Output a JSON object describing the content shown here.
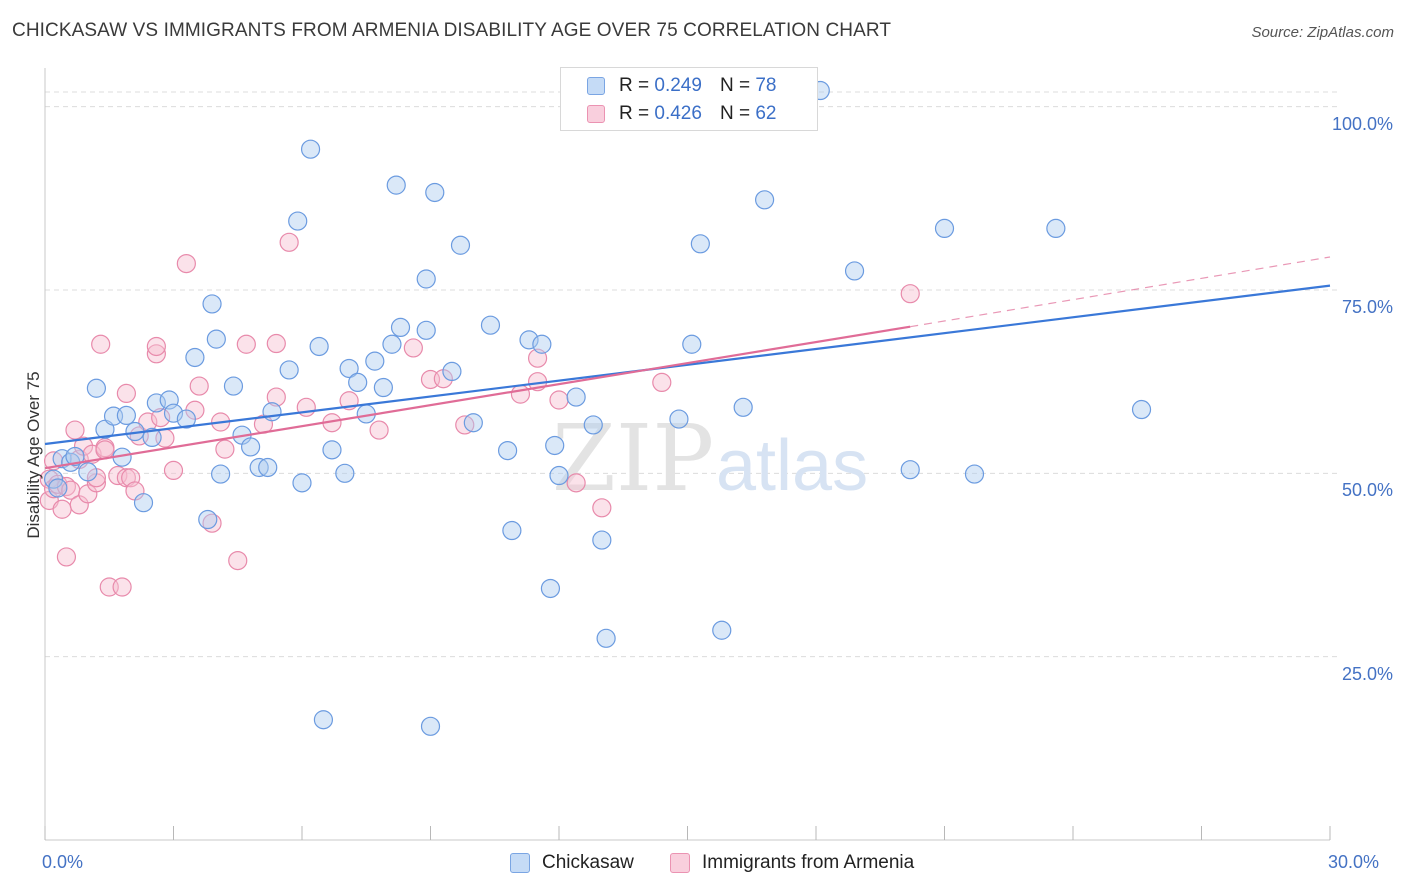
{
  "header": {
    "title": "CHICKASAW VS IMMIGRANTS FROM ARMENIA DISABILITY AGE OVER 75 CORRELATION CHART",
    "source": "Source: ZipAtlas.com"
  },
  "legend": {
    "blue": {
      "r_label": "R = ",
      "r_value": "0.249",
      "n_label": "N = ",
      "n_value": "78"
    },
    "pink": {
      "r_label": "R = ",
      "r_value": "0.426",
      "n_label": "N = ",
      "n_value": "62"
    }
  },
  "watermark": {
    "zip": "ZIP",
    "atlas": "atlas"
  },
  "colors": {
    "blue_fill": "#aecbf0",
    "blue_stroke": "#6b9be0",
    "blue_line": "#3a78d8",
    "pink_fill": "#f6bfd1",
    "pink_stroke": "#e88aab",
    "pink_line": "#e06c97",
    "tick_label": "#4472c4",
    "grid": "#dcdcdc"
  },
  "chart_data": {
    "type": "scatter",
    "title": "CHICKASAW VS IMMIGRANTS FROM ARMENIA DISABILITY AGE OVER 75 CORRELATION CHART",
    "xlabel": "",
    "ylabel": "Disability Age Over 75",
    "xlim": [
      0,
      30
    ],
    "ylim": [
      0,
      105
    ],
    "x_tick_labels": [
      "0.0%",
      "30.0%"
    ],
    "y_ticks": [
      25,
      50,
      75,
      100
    ],
    "y_tick_labels": [
      "25.0%",
      "50.0%",
      "75.0%",
      "100.0%"
    ],
    "grid": true,
    "legend_position": "top-center",
    "series": [
      {
        "name": "Chickasaw",
        "color": "#6b9be0",
        "trend": {
          "x": [
            0,
            30
          ],
          "y": [
            54.0,
            75.6
          ],
          "dashed_extension": false
        },
        "points": [
          [
            0.2,
            49.2
          ],
          [
            0.3,
            48.0
          ],
          [
            0.4,
            52.0
          ],
          [
            0.6,
            51.5
          ],
          [
            0.7,
            52.3
          ],
          [
            1.0,
            50.2
          ],
          [
            1.2,
            61.6
          ],
          [
            1.4,
            56.0
          ],
          [
            1.6,
            57.8
          ],
          [
            1.8,
            52.2
          ],
          [
            1.9,
            57.9
          ],
          [
            2.1,
            55.7
          ],
          [
            2.3,
            46.0
          ],
          [
            2.5,
            54.9
          ],
          [
            2.6,
            59.6
          ],
          [
            2.9,
            60.0
          ],
          [
            3.0,
            58.2
          ],
          [
            3.3,
            57.4
          ],
          [
            3.5,
            65.8
          ],
          [
            3.8,
            43.7
          ],
          [
            3.9,
            73.1
          ],
          [
            4.0,
            68.3
          ],
          [
            4.1,
            49.9
          ],
          [
            4.4,
            61.9
          ],
          [
            4.6,
            55.2
          ],
          [
            4.8,
            53.6
          ],
          [
            5.0,
            50.8
          ],
          [
            5.2,
            50.8
          ],
          [
            5.3,
            58.4
          ],
          [
            5.7,
            64.1
          ],
          [
            5.9,
            84.4
          ],
          [
            6.0,
            48.7
          ],
          [
            6.2,
            94.2
          ],
          [
            6.4,
            67.3
          ],
          [
            6.5,
            16.4
          ],
          [
            6.7,
            53.2
          ],
          [
            7.0,
            50.0
          ],
          [
            7.1,
            64.3
          ],
          [
            7.3,
            62.4
          ],
          [
            7.5,
            58.1
          ],
          [
            7.7,
            65.3
          ],
          [
            7.9,
            61.7
          ],
          [
            8.1,
            67.6
          ],
          [
            8.2,
            89.3
          ],
          [
            8.3,
            69.9
          ],
          [
            8.9,
            69.5
          ],
          [
            8.9,
            76.5
          ],
          [
            9.0,
            15.5
          ],
          [
            9.1,
            88.3
          ],
          [
            9.5,
            63.9
          ],
          [
            9.7,
            81.1
          ],
          [
            10.0,
            56.9
          ],
          [
            10.4,
            70.2
          ],
          [
            10.8,
            53.1
          ],
          [
            10.9,
            42.2
          ],
          [
            11.3,
            68.2
          ],
          [
            11.6,
            67.6
          ],
          [
            11.8,
            34.3
          ],
          [
            11.9,
            53.8
          ],
          [
            12.0,
            49.7
          ],
          [
            12.4,
            60.4
          ],
          [
            12.8,
            56.6
          ],
          [
            13.0,
            40.9
          ],
          [
            13.1,
            27.5
          ],
          [
            14.8,
            57.4
          ],
          [
            15.1,
            67.6
          ],
          [
            15.3,
            81.3
          ],
          [
            15.8,
            28.6
          ],
          [
            16.3,
            59.0
          ],
          [
            16.8,
            87.3
          ],
          [
            17.6,
            102.0
          ],
          [
            18.1,
            102.2
          ],
          [
            18.9,
            77.6
          ],
          [
            20.2,
            50.5
          ],
          [
            21.0,
            83.4
          ],
          [
            21.7,
            49.9
          ],
          [
            23.6,
            83.4
          ],
          [
            25.6,
            58.7
          ]
        ]
      },
      {
        "name": "Immigrants from Armenia",
        "color": "#e88aab",
        "trend": {
          "x": [
            0,
            20.2
          ],
          "y": [
            50.7,
            70.0
          ],
          "dashed_extension": true,
          "dash_to": [
            30,
            79.5
          ]
        },
        "points": [
          [
            0.1,
            46.3
          ],
          [
            0.1,
            49.2
          ],
          [
            0.2,
            47.9
          ],
          [
            0.2,
            51.7
          ],
          [
            0.3,
            48.5
          ],
          [
            0.4,
            45.1
          ],
          [
            0.5,
            38.6
          ],
          [
            0.5,
            48.2
          ],
          [
            0.6,
            47.7
          ],
          [
            0.7,
            55.9
          ],
          [
            0.8,
            45.7
          ],
          [
            0.8,
            51.9
          ],
          [
            0.9,
            53.7
          ],
          [
            1.0,
            47.2
          ],
          [
            1.1,
            52.6
          ],
          [
            1.2,
            48.7
          ],
          [
            1.2,
            49.4
          ],
          [
            1.3,
            67.6
          ],
          [
            1.4,
            53.5
          ],
          [
            1.4,
            53.2
          ],
          [
            1.5,
            34.5
          ],
          [
            1.7,
            49.7
          ],
          [
            1.8,
            34.5
          ],
          [
            1.9,
            60.9
          ],
          [
            1.9,
            49.4
          ],
          [
            2.0,
            49.4
          ],
          [
            2.1,
            47.6
          ],
          [
            2.2,
            55.1
          ],
          [
            2.4,
            57.0
          ],
          [
            2.6,
            66.3
          ],
          [
            2.6,
            67.3
          ],
          [
            2.7,
            57.6
          ],
          [
            2.8,
            54.8
          ],
          [
            3.0,
            50.4
          ],
          [
            3.3,
            78.6
          ],
          [
            3.5,
            58.6
          ],
          [
            3.6,
            61.9
          ],
          [
            3.9,
            43.2
          ],
          [
            4.1,
            57.0
          ],
          [
            4.2,
            53.3
          ],
          [
            4.5,
            38.1
          ],
          [
            4.7,
            67.6
          ],
          [
            5.1,
            56.7
          ],
          [
            5.4,
            60.4
          ],
          [
            5.4,
            67.7
          ],
          [
            5.7,
            81.5
          ],
          [
            6.1,
            59.0
          ],
          [
            6.7,
            56.9
          ],
          [
            7.1,
            59.9
          ],
          [
            7.8,
            55.9
          ],
          [
            8.6,
            67.1
          ],
          [
            9.0,
            62.8
          ],
          [
            9.3,
            62.9
          ],
          [
            9.8,
            56.6
          ],
          [
            11.1,
            60.8
          ],
          [
            11.5,
            62.5
          ],
          [
            11.5,
            65.7
          ],
          [
            12.0,
            60.0
          ],
          [
            12.4,
            48.7
          ],
          [
            13.0,
            45.3
          ],
          [
            14.4,
            62.4
          ],
          [
            20.2,
            74.5
          ]
        ]
      }
    ]
  },
  "bottom_legend": {
    "blue_label": "Chickasaw",
    "pink_label": "Immigrants from Armenia"
  }
}
